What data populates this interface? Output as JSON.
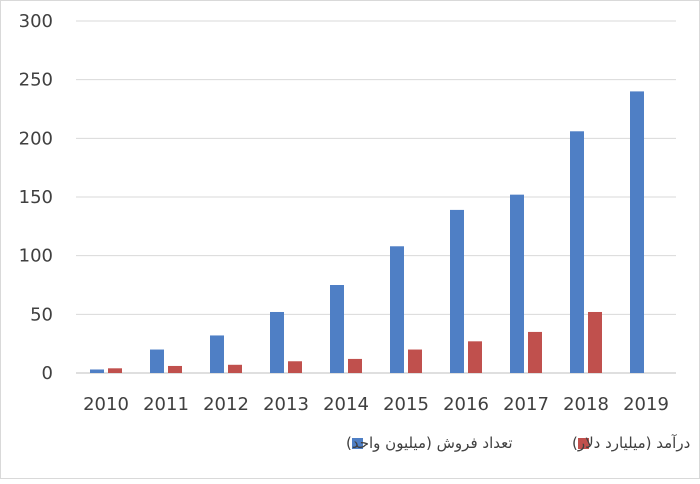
{
  "chart_data": {
    "type": "bar",
    "categories": [
      "2010",
      "2011",
      "2012",
      "2013",
      "2014",
      "2015",
      "2016",
      "2017",
      "2018",
      "2019"
    ],
    "series": [
      {
        "name": "تعداد فروش (میلیون واحد)",
        "color": "#4f7fc5",
        "values": [
          3,
          20,
          32,
          52,
          75,
          108,
          139,
          152,
          206,
          240
        ]
      },
      {
        "name": "درآمد (میلیارد دلار)",
        "color": "#c0504d",
        "values": [
          4,
          6,
          7,
          10,
          12,
          20,
          27,
          35,
          52,
          0
        ]
      }
    ],
    "yticks": [
      "0",
      "50",
      "100",
      "150",
      "200",
      "250",
      "300"
    ],
    "ylim": [
      0,
      300
    ],
    "grid": true,
    "legend_position": "bottom"
  }
}
